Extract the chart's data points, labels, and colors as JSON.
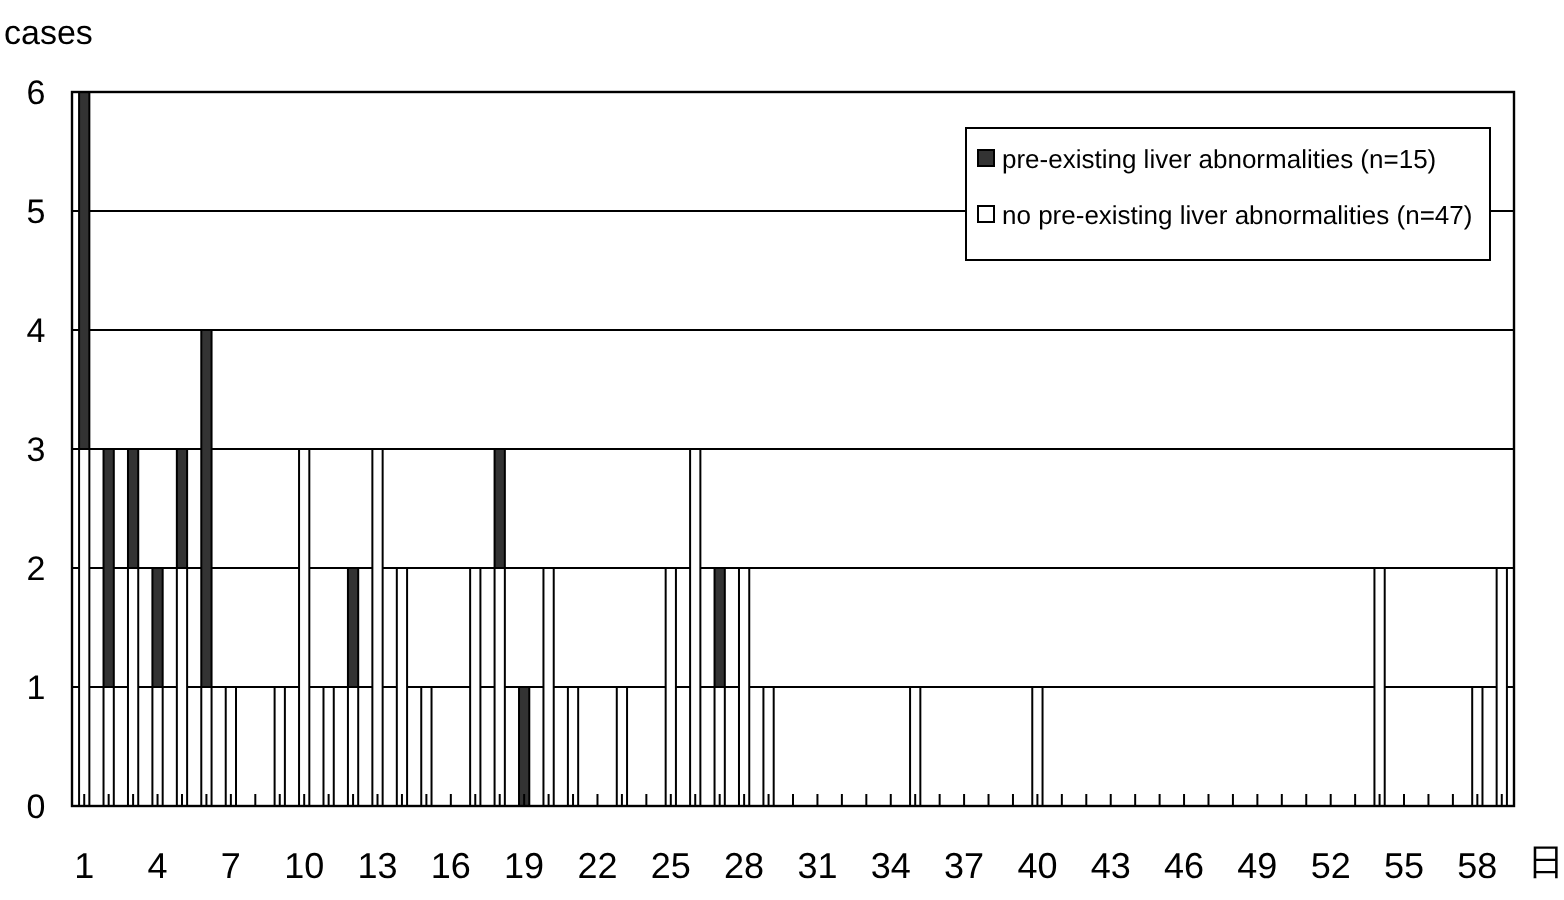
{
  "chart_data": {
    "type": "bar",
    "stacked": true,
    "ylabel": "cases",
    "xlabel": "日",
    "categories": [
      "1",
      null,
      null,
      "4",
      null,
      null,
      "7",
      null,
      null,
      "10",
      null,
      null,
      "13",
      null,
      null,
      "16",
      null,
      null,
      "19",
      null,
      null,
      "22",
      null,
      null,
      "25",
      null,
      null,
      "28",
      null,
      null,
      "31",
      null,
      null,
      "34",
      null,
      null,
      "37",
      null,
      null,
      "40",
      null,
      null,
      "43",
      null,
      null,
      "46",
      null,
      null,
      "49",
      null,
      null,
      "52",
      null,
      null,
      "55",
      null,
      null,
      "58",
      null
    ],
    "series": [
      {
        "name": "no pre-existing liver abnormalities (n=47)",
        "color": "#ffffff",
        "values": [
          3,
          1,
          2,
          1,
          2,
          1,
          1,
          0,
          1,
          3,
          1,
          1,
          3,
          2,
          1,
          0,
          2,
          2,
          0,
          2,
          1,
          0,
          1,
          0,
          2,
          3,
          1,
          2,
          1,
          0,
          0,
          0,
          0,
          0,
          1,
          0,
          0,
          0,
          0,
          1,
          0,
          0,
          0,
          0,
          0,
          0,
          0,
          0,
          0,
          0,
          0,
          0,
          0,
          2,
          0,
          0,
          0,
          1,
          2
        ]
      },
      {
        "name": "pre-existing liver abnormalities (n=15)",
        "color": "#333333",
        "values": [
          3,
          2,
          1,
          1,
          1,
          3,
          0,
          0,
          0,
          0,
          0,
          1,
          0,
          0,
          0,
          0,
          0,
          1,
          1,
          0,
          0,
          0,
          0,
          0,
          0,
          0,
          1,
          0,
          0,
          0,
          0,
          0,
          0,
          0,
          0,
          0,
          0,
          0,
          0,
          0,
          0,
          0,
          0,
          0,
          0,
          0,
          0,
          0,
          0,
          0,
          0,
          0,
          0,
          0,
          0,
          0,
          0,
          0,
          0
        ]
      }
    ],
    "ylim": [
      0,
      6
    ],
    "yticks": [
      0,
      1,
      2,
      3,
      4,
      5,
      6
    ],
    "grid": "y",
    "legend": "top right"
  }
}
